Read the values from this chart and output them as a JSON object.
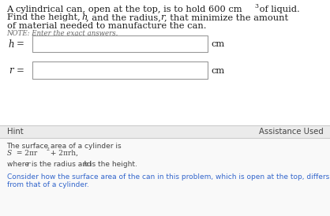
{
  "title_line1a": "A cylindrical can, open at the top, is to hold 600 cm",
  "title_line1_super": "3",
  "title_line1b": " of liquid.",
  "title_line2a": "Find the height, ",
  "title_line2_h": "h",
  "title_line2b": ", and the radius, ",
  "title_line2_r": "r",
  "title_line2c": ", that minimize the amount",
  "title_line3": "of material needed to manufacture the can.",
  "note": "NOTE: Enter the exact answers.",
  "h_label": "h",
  "r_label": "r",
  "cm_label": "cm",
  "hint_label": "Hint",
  "assistance_label": "Assistance Used",
  "hint_line1": "The surface area of a cylinder is",
  "hint_line2_S": "S",
  "hint_line2_eq": " = 2πr",
  "hint_line2_sup": "2",
  "hint_line2_rest": " + 2πrh,",
  "hint_line3a": "where ",
  "hint_line3_r": "r",
  "hint_line3b": " is the radius and ",
  "hint_line3_h": "h",
  "hint_line3c": " is the height.",
  "hint_line4": "Consider how the surface area of the can in this problem, which is open at the top, differs from that of a cylinder.",
  "bg_white": "#ffffff",
  "bg_hint_bar": "#ebebeb",
  "bg_hint_body": "#f9f9f9",
  "border_color": "#cccccc",
  "text_dark": "#1a1a1a",
  "text_note": "#666666",
  "text_hint": "#444444",
  "text_hint_blue": "#3366cc",
  "box_border": "#999999"
}
